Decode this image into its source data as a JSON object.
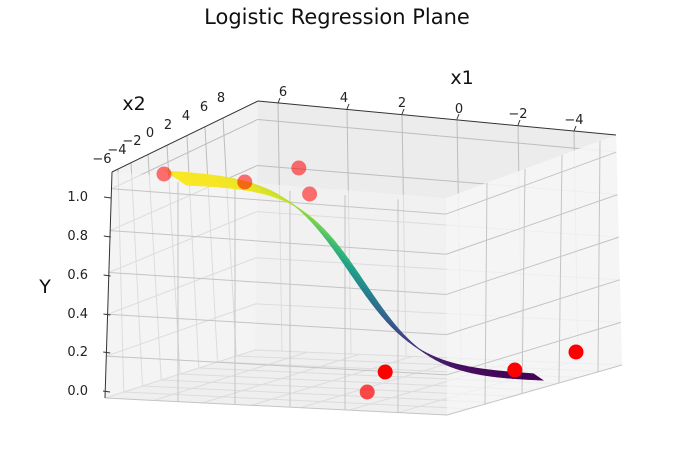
{
  "chart_data": {
    "type": "surface3d",
    "title": "Logistic Regression Plane",
    "xlabel": "x1",
    "ylabel": "x2",
    "zlabel": "Y",
    "x_ticks": [
      "6",
      "4",
      "2",
      "0",
      "−2",
      "−4"
    ],
    "y_ticks": [
      "8",
      "6",
      "4",
      "2",
      "0",
      "−2",
      "−4",
      "−6"
    ],
    "z_ticks": [
      "0.0",
      "0.2",
      "0.4",
      "0.6",
      "0.8",
      "1.0"
    ],
    "xlim": [
      -5,
      7
    ],
    "ylim": [
      -6,
      9
    ],
    "zlim": [
      0,
      1.05
    ],
    "grid": true,
    "surface": {
      "function": "sigmoid",
      "colormap": "viridis",
      "z_range": [
        0,
        1
      ]
    },
    "points": [
      {
        "y_value": 1,
        "alpha": 0.55
      },
      {
        "y_value": 1,
        "alpha": 0.55
      },
      {
        "y_value": 1,
        "alpha": 0.55
      },
      {
        "y_value": 1,
        "alpha": 0.55
      },
      {
        "y_value": 0,
        "alpha": 0.7
      },
      {
        "y_value": 0,
        "alpha": 1.0
      },
      {
        "y_value": 0,
        "alpha": 1.0
      },
      {
        "y_value": 0,
        "alpha": 1.0
      }
    ],
    "point_color": "#ff0000"
  }
}
